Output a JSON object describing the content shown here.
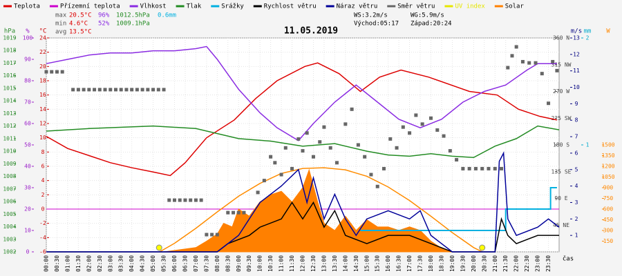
{
  "chart_data": {
    "type": "line",
    "title": "11.05.2019",
    "x_label": "čas",
    "grid": true,
    "xlim": [
      0,
      24
    ],
    "xticks": [
      {
        "value": 0,
        "label": "00:00"
      },
      {
        "value": 0.5,
        "label": "00:30"
      },
      {
        "value": 1,
        "label": "01:00"
      },
      {
        "value": 1.5,
        "label": "01:30"
      },
      {
        "value": 2,
        "label": "02:00"
      },
      {
        "value": 2.5,
        "label": "02:30"
      },
      {
        "value": 3,
        "label": "03:00"
      },
      {
        "value": 3.5,
        "label": "03:30"
      },
      {
        "value": 4,
        "label": "04:00"
      },
      {
        "value": 4.5,
        "label": "04:30"
      },
      {
        "value": 5,
        "label": "05:00"
      },
      {
        "value": 5.5,
        "label": "05:30"
      },
      {
        "value": 6,
        "label": "06:00"
      },
      {
        "value": 6.5,
        "label": "06:30"
      },
      {
        "value": 7,
        "label": "07:00"
      },
      {
        "value": 7.5,
        "label": "07:30"
      },
      {
        "value": 8,
        "label": "08:00"
      },
      {
        "value": 8.5,
        "label": "08:30"
      },
      {
        "value": 9,
        "label": "09:00"
      },
      {
        "value": 9.5,
        "label": "09:30"
      },
      {
        "value": 10,
        "label": "10:00"
      },
      {
        "value": 10.5,
        "label": "10:30"
      },
      {
        "value": 11,
        "label": "11:00"
      },
      {
        "value": 11.5,
        "label": "11:30"
      },
      {
        "value": 12,
        "label": "12:00"
      },
      {
        "value": 12.5,
        "label": "12:30"
      },
      {
        "value": 13,
        "label": "13:00"
      },
      {
        "value": 13.5,
        "label": "13:30"
      },
      {
        "value": 14,
        "label": "14:00"
      },
      {
        "value": 14.5,
        "label": "14:30"
      },
      {
        "value": 15,
        "label": "15:00"
      },
      {
        "value": 15.5,
        "label": "15:30"
      },
      {
        "value": 16,
        "label": "16:00"
      },
      {
        "value": 16.5,
        "label": "16:30"
      },
      {
        "value": 17,
        "label": "17:00"
      },
      {
        "value": 17.5,
        "label": "17:30"
      },
      {
        "value": 18,
        "label": "18:00"
      },
      {
        "value": 18.5,
        "label": "18:30"
      },
      {
        "value": 19,
        "label": "19:00"
      },
      {
        "value": 19.5,
        "label": "19:30"
      },
      {
        "value": 20,
        "label": "20:00"
      },
      {
        "value": 20.5,
        "label": "20:30"
      },
      {
        "value": 21,
        "label": "21:00"
      },
      {
        "value": 21.5,
        "label": "21:30"
      },
      {
        "value": 22,
        "label": "22:00"
      },
      {
        "value": 22.5,
        "label": "22:30"
      },
      {
        "value": 23,
        "label": "23:00"
      },
      {
        "value": 23.5,
        "label": "23:30"
      }
    ],
    "axes": {
      "hpa": {
        "label": "hPa",
        "color": "#2e8b2e",
        "side": "left",
        "pos": 14,
        "lim": [
          1002,
          1019
        ],
        "ticks": [
          1002,
          1003,
          1004,
          1005,
          1006,
          1007,
          1008,
          1009,
          1010,
          1011,
          1012,
          1013,
          1014,
          1015,
          1016,
          1017,
          1018,
          1019
        ]
      },
      "pct": {
        "label": "%",
        "color": "#9b1fc9",
        "side": "left",
        "pos": 40,
        "lim": [
          0,
          100
        ],
        "ticks": [
          0,
          10,
          20,
          30,
          40,
          50,
          60,
          70,
          80,
          90,
          100
        ]
      },
      "temp": {
        "label": "°C",
        "color": "#cc0000",
        "side": "left",
        "pos": 62,
        "lim": [
          -6,
          24
        ],
        "ticks": [
          -6,
          -4,
          -2,
          0,
          2,
          4,
          6,
          8,
          10,
          12,
          14,
          16,
          18,
          20,
          22,
          24
        ]
      },
      "dir": {
        "label": "",
        "color": "#444444",
        "side": "right",
        "pos": 812,
        "lim": [
          0,
          360
        ],
        "ticks": [
          {
            "value": 45,
            "label": "45 NE"
          },
          {
            "value": 90,
            "label": "90 E"
          },
          {
            "value": 135,
            "label": "135 SE"
          },
          {
            "value": 180,
            "label": "180 S"
          },
          {
            "value": 225,
            "label": "225 SW"
          },
          {
            "value": 270,
            "label": "270 W"
          },
          {
            "value": 315,
            "label": "315 NW"
          },
          {
            "value": 360,
            "label": "360 N"
          }
        ]
      },
      "ms": {
        "label": "m/s",
        "color": "#000080",
        "side": "right",
        "pos": 834,
        "lim": [
          0,
          13
        ],
        "ticks": [
          1,
          2,
          3,
          4,
          5,
          6,
          7,
          8,
          9,
          10,
          11,
          12,
          13
        ]
      },
      "mm": {
        "label": "mm",
        "color": "#00aacc",
        "side": "right",
        "pos": 850,
        "lim": [
          0,
          2
        ],
        "ticks": [
          1,
          2
        ]
      },
      "w": {
        "label": "W",
        "color": "#ff8800",
        "side": "right",
        "pos": 880,
        "lim": [
          0,
          3000
        ],
        "ticks": [
          150,
          300,
          450,
          600,
          750,
          900,
          1050,
          1200,
          1350,
          1500
        ]
      }
    },
    "stats": [
      {
        "items": [
          "max",
          "20.5°C",
          "96%",
          "1012.5hPa",
          "0.6mm"
        ]
      },
      {
        "items": [
          "min",
          "4.6°C",
          "52%",
          "1009.1hPa"
        ]
      },
      {
        "items": [
          "avg",
          "13.5°C"
        ]
      }
    ],
    "wind_stats": [
      [
        "WS:3.2m/s",
        "WG:5.9m/s"
      ],
      [
        "Východ:05:17",
        "Západ:20:24"
      ]
    ],
    "sun_markers": [
      5.28,
      20.4
    ],
    "zero_line": 0,
    "solar_curve": {
      "x": [
        5.3,
        6,
        7,
        8,
        9,
        10,
        11,
        12,
        13,
        14,
        15,
        16,
        17,
        18,
        19,
        20,
        20.4
      ],
      "values": [
        0,
        120,
        330,
        560,
        780,
        960,
        1100,
        1170,
        1180,
        1150,
        1060,
        910,
        720,
        500,
        270,
        60,
        0
      ]
    },
    "series": [
      {
        "name": "Teplota",
        "color": "#dd0000",
        "axis": "temp",
        "kind": "line",
        "x": [
          0,
          1,
          2,
          3,
          4,
          5,
          5.8,
          6.5,
          7.5,
          8.8,
          9.8,
          10.8,
          12.1,
          12.7,
          13.7,
          14.7,
          15.6,
          16.6,
          17.9,
          19.8,
          21.1,
          22.1,
          23.1,
          23.9
        ],
        "values": [
          10.2,
          8.5,
          7.5,
          6.5,
          5.8,
          5.2,
          4.7,
          6.5,
          10,
          12.5,
          15.5,
          18,
          20,
          20.5,
          19,
          16.5,
          18.5,
          19.5,
          18.5,
          16.5,
          16,
          14,
          13,
          12.5
        ]
      },
      {
        "name": "Přízemní teplota",
        "color": "#cc00cc",
        "axis": "temp",
        "kind": "line",
        "x": [],
        "values": []
      },
      {
        "name": "Vlhkost",
        "color": "#8a2be2",
        "axis": "pct",
        "kind": "line",
        "x": [
          0,
          1,
          2,
          3,
          4,
          5,
          6,
          7,
          7.5,
          8,
          9,
          10,
          10.8,
          11.8,
          12.5,
          13.5,
          14.5,
          15.5,
          16.5,
          17.5,
          18.5,
          19.5,
          20.5,
          21.5,
          22.5,
          23,
          23.9
        ],
        "values": [
          88,
          90,
          92,
          93,
          93,
          94,
          94,
          95,
          96,
          90,
          76,
          65,
          58,
          52,
          60,
          70,
          78,
          70,
          62,
          58,
          62,
          70,
          75,
          78,
          85,
          88,
          88
        ]
      },
      {
        "name": "Tlak",
        "color": "#228b22",
        "axis": "hpa",
        "kind": "line",
        "x": [
          0,
          2,
          5,
          7,
          9,
          10.5,
          12,
          13.5,
          15,
          16,
          17,
          18,
          19,
          20,
          21,
          22,
          23,
          24
        ],
        "values": [
          1011.6,
          1011.8,
          1012,
          1011.8,
          1011,
          1010.8,
          1010.4,
          1010.6,
          1010,
          1009.7,
          1009.6,
          1009.8,
          1009.6,
          1009.5,
          1010.4,
          1011,
          1012,
          1011.7
        ]
      },
      {
        "name": "Srážky",
        "color": "#00b0e0",
        "axis": "mm",
        "kind": "step",
        "x": [
          14.7,
          21.5,
          21.5,
          23.6,
          23.6,
          23.9
        ],
        "values": [
          0.2,
          0.2,
          0.4,
          0.4,
          0.6,
          0.6
        ]
      },
      {
        "name": "Rychlost větru",
        "color": "#000000",
        "axis": "ms",
        "kind": "line",
        "x": [
          0,
          8,
          8.5,
          9.5,
          10,
          11,
          11.5,
          12,
          12.5,
          13,
          13.5,
          14,
          15,
          16,
          17,
          18,
          19,
          21,
          21.3,
          21.6,
          22,
          23,
          24
        ],
        "values": [
          0,
          0,
          0.5,
          1,
          1.5,
          2,
          3,
          2,
          3,
          1.5,
          2.5,
          1,
          0.5,
          1,
          1,
          0.5,
          0,
          0,
          2,
          1,
          0.5,
          1,
          1
        ]
      },
      {
        "name": "Náraz větru",
        "color": "#000099",
        "axis": "ms",
        "kind": "line",
        "x": [
          0,
          8,
          9,
          10,
          11,
          11.8,
          12.2,
          12.5,
          13,
          13.5,
          14,
          14.5,
          15,
          16,
          17,
          17.5,
          18,
          19,
          21,
          21.2,
          21.4,
          21.6,
          22,
          23,
          23.5,
          24
        ],
        "values": [
          0,
          0,
          1,
          3,
          4,
          5,
          3,
          4.5,
          2,
          3.5,
          2,
          1,
          2,
          2.5,
          2,
          2.5,
          1,
          0,
          0,
          5.5,
          6,
          2,
          1,
          1.5,
          2,
          1.5
        ]
      },
      {
        "name": "Směr větru",
        "color": "#666666",
        "axis": "dir",
        "kind": "points",
        "x": [
          0,
          0.25,
          0.5,
          0.75,
          1.25,
          1.5,
          1.75,
          2,
          2.25,
          2.5,
          2.75,
          3,
          3.25,
          3.5,
          3.75,
          4,
          4.25,
          4.5,
          4.75,
          5,
          5.25,
          5.5,
          5.75,
          6,
          6.25,
          6.5,
          6.75,
          7,
          7.25,
          7.5,
          7.75,
          8,
          8.5,
          8.75,
          9,
          9.25,
          9.9,
          10.2,
          10.5,
          10.7,
          11,
          11.2,
          11.5,
          11.8,
          12,
          12.2,
          12.5,
          12.8,
          13,
          13.3,
          13.6,
          14,
          14.3,
          14.6,
          14.9,
          15.2,
          15.5,
          15.8,
          16.1,
          16.4,
          16.7,
          17,
          17.3,
          17.6,
          18,
          18.3,
          18.6,
          18.9,
          19.2,
          19.5,
          19.8,
          20.1,
          20.4,
          20.7,
          21,
          21.3,
          21.6,
          21.8,
          22,
          22.3,
          22.6,
          22.9,
          23.2,
          23.5,
          23.7,
          23.9
        ],
        "values": [
          303,
          303,
          303,
          303,
          273,
          273,
          273,
          273,
          273,
          273,
          273,
          273,
          273,
          273,
          273,
          273,
          273,
          273,
          273,
          273,
          273,
          273,
          87,
          87,
          87,
          87,
          87,
          87,
          87,
          29,
          29,
          29,
          66,
          66,
          66,
          66,
          100,
          120,
          160,
          150,
          130,
          175,
          140,
          190,
          170,
          200,
          160,
          185,
          210,
          175,
          150,
          215,
          240,
          180,
          160,
          130,
          110,
          140,
          190,
          175,
          210,
          200,
          230,
          215,
          225,
          205,
          195,
          170,
          155,
          140,
          140,
          140,
          140,
          140,
          140,
          140,
          310,
          330,
          345,
          320,
          318,
          318,
          300,
          250,
          320,
          305
        ]
      },
      {
        "name": "UV index",
        "color": "#e6e600",
        "axis": "w",
        "kind": "line",
        "x": [],
        "values": []
      },
      {
        "name": "Solar",
        "color": "#ff8000",
        "axis": "w",
        "kind": "area",
        "x": [
          5.5,
          7,
          7.5,
          8,
          8.3,
          8.7,
          9,
          9.5,
          10,
          10.5,
          11,
          11.5,
          12,
          12.3,
          12.7,
          13,
          13.5,
          14,
          14.5,
          15,
          15.5,
          16,
          16.5,
          17,
          17.5,
          18,
          18.5,
          19
        ],
        "values": [
          0,
          60,
          150,
          250,
          400,
          350,
          600,
          500,
          700,
          800,
          850,
          700,
          900,
          1150,
          700,
          400,
          300,
          500,
          300,
          450,
          350,
          350,
          300,
          350,
          300,
          150,
          50,
          0
        ]
      }
    ]
  }
}
